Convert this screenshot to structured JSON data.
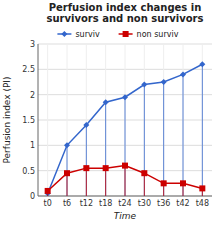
{
  "chart_data": {
    "type": "line",
    "title": "Perfusion index changes in\nsurvivors and non survivors",
    "xlabel": "Time",
    "ylabel": "Perfusion index (PI)",
    "categories": [
      "t0",
      "t6",
      "t12",
      "t18",
      "t24",
      "t30",
      "t36",
      "t42",
      "t48"
    ],
    "series": [
      {
        "name": "surviv",
        "color": "#3366CC",
        "marker": "diamond",
        "values": [
          0.05,
          1.0,
          1.4,
          1.85,
          1.95,
          2.2,
          2.25,
          2.4,
          2.6
        ]
      },
      {
        "name": "non surviv",
        "color": "#CC0000",
        "marker": "square",
        "values": [
          0.1,
          0.45,
          0.55,
          0.55,
          0.6,
          0.45,
          0.25,
          0.25,
          0.15
        ]
      }
    ],
    "ylim": [
      0,
      3
    ],
    "yticks": [
      0,
      0.5,
      1,
      1.5,
      2,
      2.5,
      3
    ],
    "grid": true,
    "legend": "top"
  }
}
